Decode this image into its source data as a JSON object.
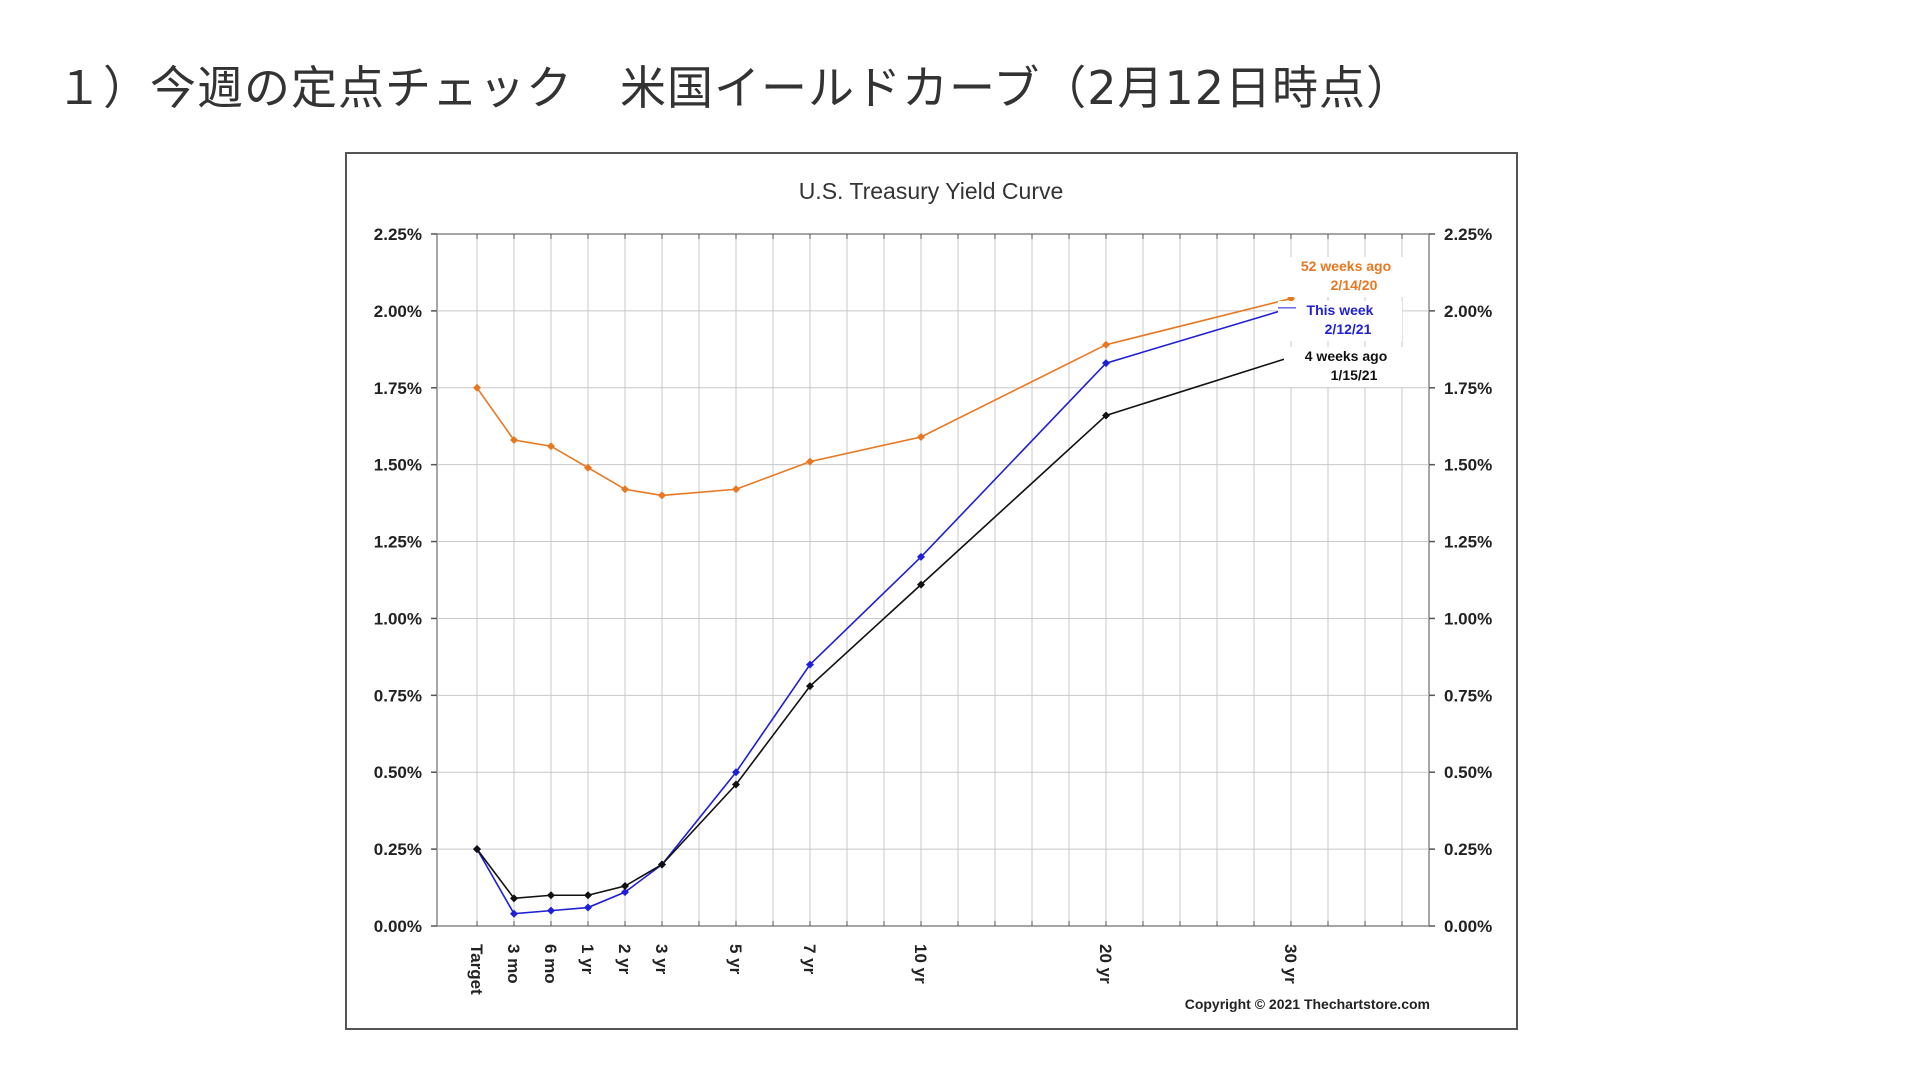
{
  "slide": {
    "title": "１）今週の定点チェック　米国イールドカーブ（2月12日時点）"
  },
  "chart_data": {
    "type": "line",
    "title": "U.S. Treasury Yield Curve",
    "categories": [
      "Target",
      "3 mo",
      "6 mo",
      "1 yr",
      "2 yr",
      "3 yr",
      "5 yr",
      "7 yr",
      "10 yr",
      "20 yr",
      "30 yr"
    ],
    "x_positions_months": [
      0,
      3,
      6,
      9,
      12,
      15,
      21,
      27,
      36,
      51,
      66
    ],
    "y_ticks": [
      "0.00%",
      "0.25%",
      "0.50%",
      "0.75%",
      "1.00%",
      "1.25%",
      "1.50%",
      "1.75%",
      "2.00%",
      "2.25%"
    ],
    "ylim": [
      0,
      2.25
    ],
    "y_unit": "%",
    "grid": true,
    "legend_position": "right",
    "series": [
      {
        "name": "52 weeks ago",
        "date": "2/14/20",
        "color": "#e87722",
        "values": [
          1.75,
          1.58,
          1.56,
          1.49,
          1.42,
          1.4,
          1.42,
          1.51,
          1.59,
          1.89,
          2.04
        ]
      },
      {
        "name": "This week",
        "date": "2/12/21",
        "color": "#1f1fd6",
        "values": [
          0.25,
          0.04,
          0.05,
          0.06,
          0.11,
          0.2,
          0.5,
          0.85,
          1.2,
          1.83,
          2.01
        ]
      },
      {
        "name": "4 weeks ago",
        "date": "1/15/21",
        "color": "#111111",
        "values": [
          0.25,
          0.09,
          0.1,
          0.1,
          0.13,
          0.2,
          0.46,
          0.78,
          1.11,
          1.66,
          1.85
        ]
      }
    ],
    "copyright": "Copyright © 2021 Thechartstore.com"
  }
}
